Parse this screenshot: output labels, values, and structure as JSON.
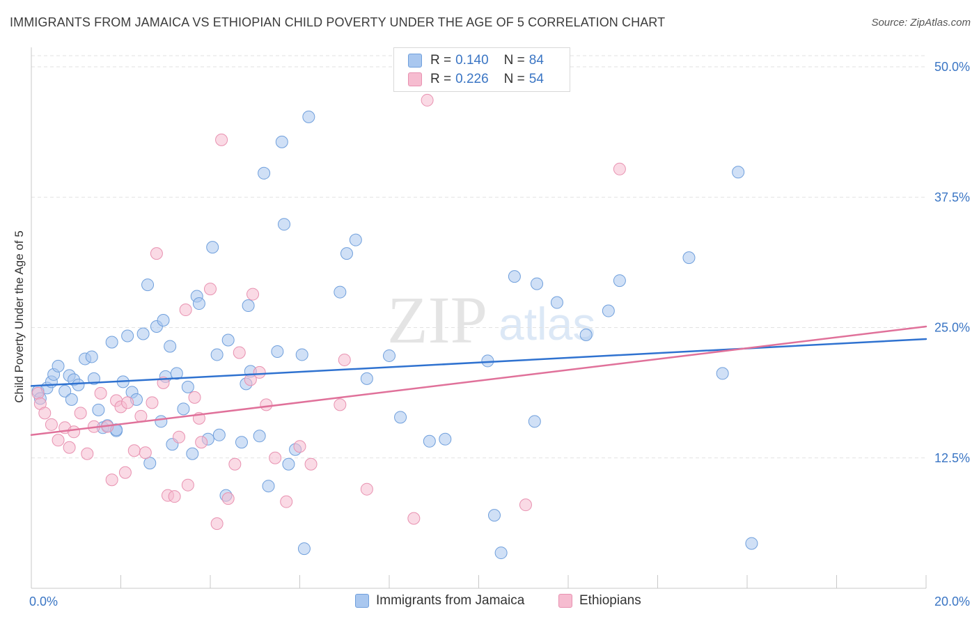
{
  "title": "IMMIGRANTS FROM JAMAICA VS ETHIOPIAN CHILD POVERTY UNDER THE AGE OF 5 CORRELATION CHART",
  "source": "Source: ZipAtlas.com",
  "watermark": {
    "zip": "ZIP",
    "atlas": "atlas"
  },
  "legend_top": [
    {
      "r_label": "R =",
      "r_value": "0.140",
      "n_label": "N =",
      "n_value": "84"
    },
    {
      "r_label": "R =",
      "r_value": "0.226",
      "n_label": "N =",
      "n_value": "54"
    }
  ],
  "legend_bottom": [
    {
      "name": "Immigrants from Jamaica"
    },
    {
      "name": "Ethiopians"
    }
  ],
  "chart_data": {
    "type": "scatter",
    "title": "IMMIGRANTS FROM JAMAICA VS ETHIOPIAN CHILD POVERTY UNDER THE AGE OF 5 CORRELATION CHART",
    "xlabel": "",
    "ylabel": "Child Poverty Under the Age of 5",
    "xlim": [
      0,
      20
    ],
    "ylim": [
      0,
      50
    ],
    "x_tick_labels": [
      "0.0%",
      "20.0%"
    ],
    "y_tick_labels": [
      "12.5%",
      "25.0%",
      "37.5%",
      "50.0%"
    ],
    "y_ticks": [
      12.5,
      25,
      37.5,
      50
    ],
    "grid": true,
    "legend_placement": "top-center",
    "series": [
      {
        "name": "Immigrants from Jamaica",
        "color": "#a9c7ef",
        "stroke": "#6f9fdc",
        "trend_color": "#2f72d0",
        "trend": [
          [
            0,
            19.4
          ],
          [
            20,
            23.9
          ]
        ],
        "points": [
          [
            0.15,
            18.9
          ],
          [
            0.2,
            18.2
          ],
          [
            0.35,
            19.2
          ],
          [
            0.45,
            19.8
          ],
          [
            0.5,
            20.5
          ],
          [
            0.6,
            21.3
          ],
          [
            0.75,
            18.9
          ],
          [
            0.85,
            20.4
          ],
          [
            0.9,
            18.1
          ],
          [
            0.95,
            20.0
          ],
          [
            1.05,
            19.5
          ],
          [
            1.2,
            22.0
          ],
          [
            1.35,
            22.2
          ],
          [
            1.4,
            20.1
          ],
          [
            1.5,
            17.1
          ],
          [
            1.6,
            15.4
          ],
          [
            1.7,
            15.6
          ],
          [
            1.8,
            23.6
          ],
          [
            1.9,
            15.1
          ],
          [
            1.9,
            15.2
          ],
          [
            2.05,
            19.8
          ],
          [
            2.15,
            24.2
          ],
          [
            2.25,
            18.8
          ],
          [
            2.35,
            18.1
          ],
          [
            2.5,
            24.4
          ],
          [
            2.6,
            29.1
          ],
          [
            2.65,
            12.0
          ],
          [
            2.8,
            25.1
          ],
          [
            2.9,
            16.0
          ],
          [
            2.95,
            25.7
          ],
          [
            3.0,
            20.3
          ],
          [
            3.1,
            23.2
          ],
          [
            3.15,
            13.8
          ],
          [
            3.25,
            20.6
          ],
          [
            3.4,
            17.2
          ],
          [
            3.5,
            19.3
          ],
          [
            3.6,
            12.9
          ],
          [
            3.7,
            28.0
          ],
          [
            3.75,
            27.3
          ],
          [
            3.95,
            14.3
          ],
          [
            4.05,
            32.7
          ],
          [
            4.15,
            22.4
          ],
          [
            4.2,
            14.7
          ],
          [
            4.35,
            8.9
          ],
          [
            4.4,
            23.8
          ],
          [
            4.7,
            14.0
          ],
          [
            4.8,
            19.6
          ],
          [
            4.85,
            27.1
          ],
          [
            4.9,
            20.8
          ],
          [
            5.1,
            14.6
          ],
          [
            5.2,
            39.8
          ],
          [
            5.3,
            9.8
          ],
          [
            5.5,
            22.7
          ],
          [
            5.6,
            42.8
          ],
          [
            5.65,
            34.9
          ],
          [
            5.75,
            11.9
          ],
          [
            5.9,
            13.3
          ],
          [
            6.05,
            22.4
          ],
          [
            6.1,
            3.8
          ],
          [
            6.2,
            45.2
          ],
          [
            6.9,
            28.4
          ],
          [
            7.05,
            32.1
          ],
          [
            7.25,
            33.4
          ],
          [
            7.5,
            20.1
          ],
          [
            8.0,
            22.3
          ],
          [
            8.25,
            16.4
          ],
          [
            8.9,
            14.1
          ],
          [
            9.25,
            14.3
          ],
          [
            10.2,
            21.8
          ],
          [
            10.35,
            7.0
          ],
          [
            10.5,
            3.4
          ],
          [
            10.8,
            29.9
          ],
          [
            11.25,
            16.0
          ],
          [
            11.3,
            29.2
          ],
          [
            11.75,
            27.4
          ],
          [
            12.4,
            24.3
          ],
          [
            12.9,
            26.6
          ],
          [
            13.15,
            29.5
          ],
          [
            14.7,
            31.7
          ],
          [
            15.45,
            20.6
          ],
          [
            15.8,
            39.9
          ],
          [
            16.1,
            4.3
          ]
        ]
      },
      {
        "name": "Ethiopians",
        "color": "#f6bcd0",
        "stroke": "#e891b0",
        "trend_color": "#e0719a",
        "trend": [
          [
            0,
            14.7
          ],
          [
            20,
            25.1
          ]
        ],
        "points": [
          [
            0.15,
            18.7
          ],
          [
            0.2,
            17.7
          ],
          [
            0.3,
            16.8
          ],
          [
            0.45,
            15.7
          ],
          [
            0.6,
            14.2
          ],
          [
            0.75,
            15.4
          ],
          [
            0.85,
            13.5
          ],
          [
            0.95,
            15.0
          ],
          [
            1.1,
            16.8
          ],
          [
            1.25,
            12.9
          ],
          [
            1.4,
            15.5
          ],
          [
            1.55,
            18.7
          ],
          [
            1.7,
            15.5
          ],
          [
            1.8,
            10.4
          ],
          [
            1.9,
            18.0
          ],
          [
            2.0,
            17.4
          ],
          [
            2.1,
            11.1
          ],
          [
            2.15,
            17.8
          ],
          [
            2.3,
            13.2
          ],
          [
            2.45,
            16.5
          ],
          [
            2.55,
            13.0
          ],
          [
            2.7,
            17.8
          ],
          [
            2.8,
            32.1
          ],
          [
            2.95,
            19.7
          ],
          [
            3.05,
            8.9
          ],
          [
            3.2,
            8.8
          ],
          [
            3.3,
            14.5
          ],
          [
            3.45,
            26.7
          ],
          [
            3.5,
            9.9
          ],
          [
            3.65,
            18.3
          ],
          [
            3.75,
            16.3
          ],
          [
            3.8,
            14.0
          ],
          [
            4.0,
            28.7
          ],
          [
            4.15,
            6.2
          ],
          [
            4.25,
            43.0
          ],
          [
            4.4,
            8.6
          ],
          [
            4.55,
            11.9
          ],
          [
            4.65,
            22.6
          ],
          [
            4.9,
            20.0
          ],
          [
            4.95,
            28.2
          ],
          [
            5.1,
            20.7
          ],
          [
            5.25,
            17.6
          ],
          [
            5.45,
            12.5
          ],
          [
            5.7,
            8.3
          ],
          [
            6.0,
            13.6
          ],
          [
            6.25,
            11.9
          ],
          [
            6.9,
            17.6
          ],
          [
            7.0,
            21.9
          ],
          [
            7.5,
            9.5
          ],
          [
            8.55,
            6.7
          ],
          [
            8.85,
            46.8
          ],
          [
            11.05,
            8.0
          ],
          [
            13.15,
            40.2
          ]
        ]
      }
    ]
  }
}
